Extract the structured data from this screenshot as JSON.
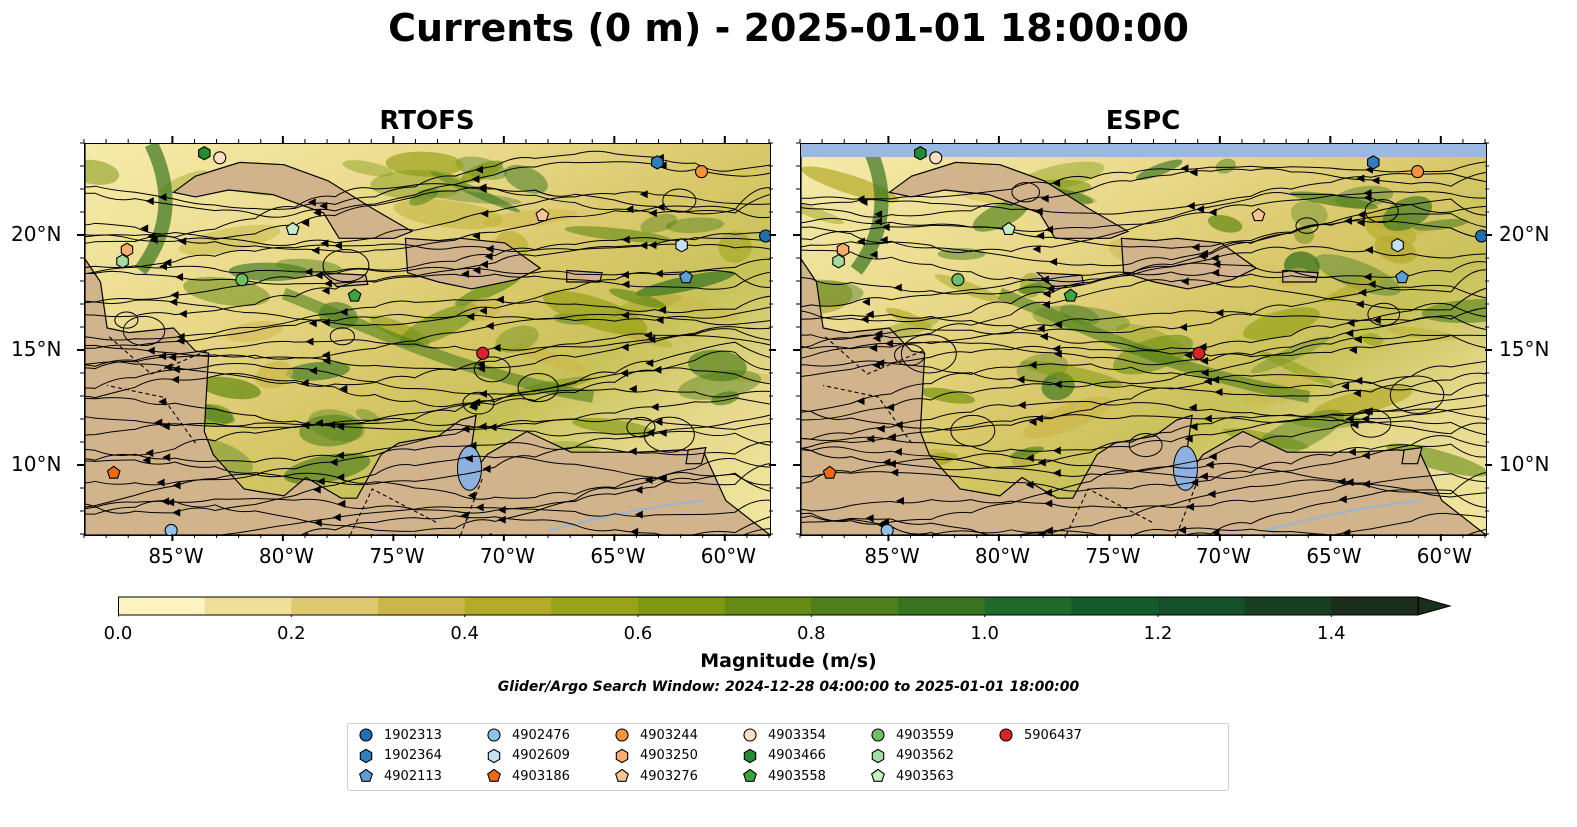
{
  "title": "Currents (0 m) - 2025-01-01 18:00:00",
  "panels": [
    {
      "title": "RTOFS"
    },
    {
      "title": "ESPC"
    }
  ],
  "axes": {
    "lon_labels": [
      "85°W",
      "80°W",
      "75°W",
      "70°W",
      "65°W",
      "60°W"
    ],
    "lon_values": [
      -85,
      -80,
      -75,
      -70,
      -65,
      -60
    ],
    "lat_labels": [
      "20°N",
      "15°N",
      "10°N"
    ],
    "lat_values": [
      20,
      15,
      10
    ],
    "lon_range": [
      -89,
      -58
    ],
    "lat_range": [
      7,
      24
    ]
  },
  "colorbar": {
    "label": "Magnitude (m/s)",
    "tick_labels": [
      "0.0",
      "0.2",
      "0.4",
      "0.6",
      "0.8",
      "1.0",
      "1.2",
      "1.4"
    ],
    "tick_values": [
      0,
      0.2,
      0.4,
      0.6,
      0.8,
      1.0,
      1.2,
      1.4
    ],
    "range": [
      0,
      1.5
    ],
    "extend": "max",
    "colors": [
      "#fbf4c0",
      "#efe098",
      "#dfc970",
      "#cdb648",
      "#b4ab2a",
      "#99a219",
      "#7f9812",
      "#658b14",
      "#4e7f1a",
      "#387420",
      "#1f6a2a",
      "#125c2c",
      "#14502a",
      "#193f22",
      "#1a2e1a"
    ]
  },
  "search_window": "Glider/Argo Search Window: 2024-12-28 04:00:00 to 2025-01-01 18:00:00",
  "legend": {
    "items": [
      {
        "label": "1902313",
        "shape": "circle",
        "color": "#1f6fb5"
      },
      {
        "label": "1902364",
        "shape": "hexagon",
        "color": "#2e7fc1"
      },
      {
        "label": "4902113",
        "shape": "pentagon",
        "color": "#5b9fd6"
      },
      {
        "label": "4902476",
        "shape": "circle",
        "color": "#8ec1e6"
      },
      {
        "label": "4902609",
        "shape": "hexagon",
        "color": "#c6e0f2"
      },
      {
        "label": "4903186",
        "shape": "pentagon",
        "color": "#ef6a0e"
      },
      {
        "label": "4903244",
        "shape": "circle",
        "color": "#f59339"
      },
      {
        "label": "4903250",
        "shape": "hexagon",
        "color": "#f8ad6d"
      },
      {
        "label": "4903276",
        "shape": "pentagon",
        "color": "#fbc592"
      },
      {
        "label": "4903354",
        "shape": "circle",
        "color": "#fde0c4"
      },
      {
        "label": "4903466",
        "shape": "hexagon",
        "color": "#238b32"
      },
      {
        "label": "4903558",
        "shape": "pentagon",
        "color": "#3aa43e"
      },
      {
        "label": "4903559",
        "shape": "circle",
        "color": "#6cc06a"
      },
      {
        "label": "4903562",
        "shape": "hexagon",
        "color": "#a5dba0"
      },
      {
        "label": "4903563",
        "shape": "pentagon",
        "color": "#c9edc3"
      },
      {
        "label": "5906437",
        "shape": "circle",
        "color": "#d7262b"
      }
    ]
  },
  "platform_positions": {
    "RTOFS": [
      {
        "id": "1902313",
        "lon": -58.2,
        "lat": 20.0
      },
      {
        "id": "1902364",
        "lon": -63.1,
        "lat": 23.2
      },
      {
        "id": "4902113",
        "lon": -61.8,
        "lat": 18.2
      },
      {
        "id": "4902476",
        "lon": -85.1,
        "lat": 7.2
      },
      {
        "id": "4902609",
        "lon": -62.0,
        "lat": 19.6
      },
      {
        "id": "4903186",
        "lon": -87.7,
        "lat": 9.7
      },
      {
        "id": "4903244",
        "lon": -61.1,
        "lat": 22.8
      },
      {
        "id": "4903250",
        "lon": -87.1,
        "lat": 19.4
      },
      {
        "id": "4903276",
        "lon": -68.3,
        "lat": 20.9
      },
      {
        "id": "4903354",
        "lon": -82.9,
        "lat": 23.4
      },
      {
        "id": "4903466",
        "lon": -83.6,
        "lat": 23.6
      },
      {
        "id": "4903558",
        "lon": -76.8,
        "lat": 17.4
      },
      {
        "id": "4903559",
        "lon": -81.9,
        "lat": 18.1
      },
      {
        "id": "4903562",
        "lon": -87.3,
        "lat": 18.9
      },
      {
        "id": "4903563",
        "lon": -79.6,
        "lat": 20.3
      },
      {
        "id": "5906437",
        "lon": -71.0,
        "lat": 14.9
      }
    ],
    "ESPC": [
      {
        "id": "1902313",
        "lon": -58.2,
        "lat": 20.0
      },
      {
        "id": "1902364",
        "lon": -63.1,
        "lat": 23.2
      },
      {
        "id": "4902113",
        "lon": -61.8,
        "lat": 18.2
      },
      {
        "id": "4902476",
        "lon": -85.1,
        "lat": 7.2
      },
      {
        "id": "4902609",
        "lon": -62.0,
        "lat": 19.6
      },
      {
        "id": "4903186",
        "lon": -87.7,
        "lat": 9.7
      },
      {
        "id": "4903244",
        "lon": -61.1,
        "lat": 22.8
      },
      {
        "id": "4903250",
        "lon": -87.1,
        "lat": 19.4
      },
      {
        "id": "4903276",
        "lon": -68.3,
        "lat": 20.9
      },
      {
        "id": "4903354",
        "lon": -82.9,
        "lat": 23.4
      },
      {
        "id": "4903466",
        "lon": -83.6,
        "lat": 23.6
      },
      {
        "id": "4903558",
        "lon": -76.8,
        "lat": 17.4
      },
      {
        "id": "4903559",
        "lon": -81.9,
        "lat": 18.1
      },
      {
        "id": "4903562",
        "lon": -87.3,
        "lat": 18.9
      },
      {
        "id": "4903563",
        "lon": -79.6,
        "lat": 20.3
      },
      {
        "id": "5906437",
        "lon": -71.0,
        "lat": 14.9
      }
    ]
  }
}
